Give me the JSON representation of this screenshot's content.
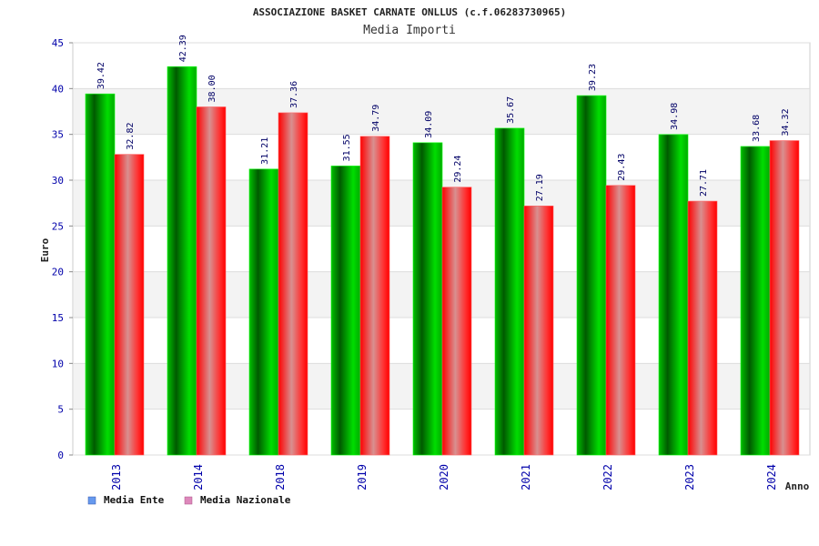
{
  "chart_data": {
    "type": "bar",
    "title": "ASSOCIAZIONE BASKET CARNATE ONLLUS (c.f.06283730965)",
    "subtitle": "Media Importi",
    "xlabel": "Anno",
    "ylabel": "Euro",
    "ylim": [
      0,
      45
    ],
    "yticks": [
      0,
      5,
      10,
      15,
      20,
      25,
      30,
      35,
      40,
      45
    ],
    "categories": [
      "2013",
      "2014",
      "2018",
      "2019",
      "2020",
      "2021",
      "2022",
      "2023",
      "2024"
    ],
    "series": [
      {
        "name": "Media Ente",
        "values": [
          39.42,
          42.39,
          31.21,
          31.55,
          34.09,
          35.67,
          39.23,
          34.98,
          33.68
        ],
        "labels": [
          "39.42",
          "42.39",
          "31.21",
          "31.55",
          "34.09",
          "35.67",
          "39.23",
          "34.98",
          "33.68"
        ]
      },
      {
        "name": "Media Nazionale",
        "values": [
          32.82,
          38.0,
          37.36,
          34.79,
          29.24,
          27.19,
          29.43,
          27.71,
          34.32
        ],
        "labels": [
          "32.82",
          "38.00",
          "37.36",
          "34.79",
          "29.24",
          "27.19",
          "29.43",
          "27.71",
          "34.32"
        ]
      }
    ],
    "grid": true,
    "legend_position": "bottom-left",
    "colors": {
      "series_1": "#00aa00",
      "series_2": "#ff2222",
      "legend_1": "#6699ee",
      "legend_2": "#dd88bb",
      "band": "#f3f3f3",
      "tick_text": "#0000aa"
    }
  }
}
